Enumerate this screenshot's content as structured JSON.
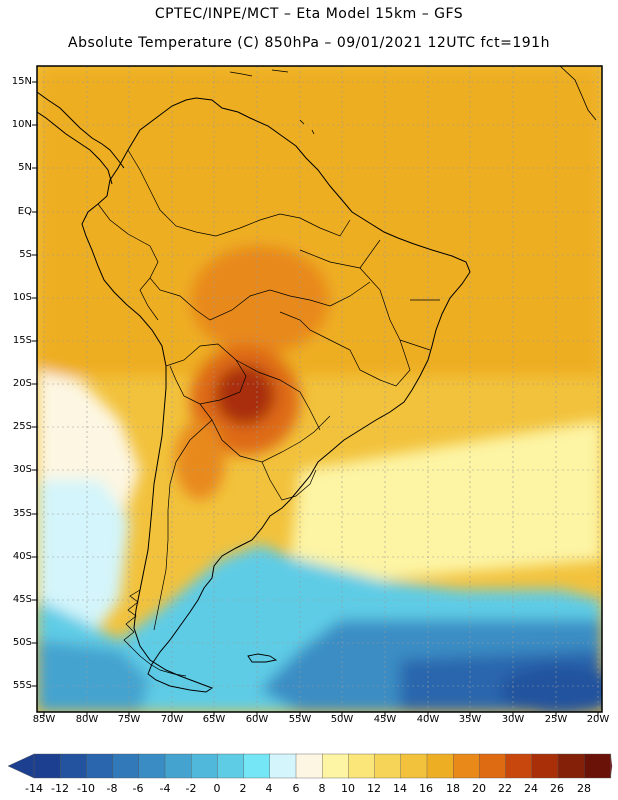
{
  "header": {
    "line1": "CPTEC/INPE/MCT  –   Eta Model 15km  –  GFS",
    "line2": "Absolute Temperature (C) 850hPa – 09/01/2021 12UTC fct=191h"
  },
  "map": {
    "lat_labels": [
      "15N",
      "10N",
      "5N",
      "EQ",
      "5S",
      "10S",
      "15S",
      "20S",
      "25S",
      "30S",
      "35S",
      "40S",
      "45S",
      "50S",
      "55S"
    ],
    "lon_labels": [
      "85W",
      "80W",
      "75W",
      "70W",
      "65W",
      "60W",
      "55W",
      "50W",
      "45W",
      "40W",
      "35W",
      "30W",
      "25W",
      "20W"
    ],
    "lat_range": [
      15,
      -57
    ],
    "lon_range": [
      -86,
      -20
    ]
  },
  "colorbar": {
    "labels": [
      "-14",
      "-12",
      "-10",
      "-8",
      "-6",
      "-4",
      "-2",
      "0",
      "2",
      "4",
      "6",
      "8",
      "10",
      "12",
      "14",
      "16",
      "18",
      "20",
      "22",
      "24",
      "26",
      "28"
    ],
    "colors": [
      "#1c3f8f",
      "#23529e",
      "#2a66ad",
      "#3179b8",
      "#3a8dc4",
      "#44a3cf",
      "#50b8da",
      "#5fcce6",
      "#74e6f5",
      "#d3f5fb",
      "#fdf6e2",
      "#fdf4a4",
      "#fbe679",
      "#f6d457",
      "#f2c23c",
      "#eeae24",
      "#e8891a",
      "#de6a12",
      "#c8470c",
      "#a92f09",
      "#842008",
      "#6b1208"
    ]
  }
}
